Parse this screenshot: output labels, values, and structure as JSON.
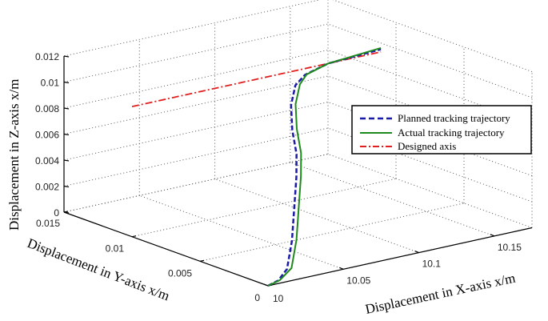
{
  "chart_data": {
    "type": "line3d",
    "title": "",
    "xlabel": "Displacement in X-axis x/m",
    "ylabel": "Displacement in Y-axis x/m",
    "zlabel": "Displacement in Z-axis x/m",
    "xlim": [
      10,
      10.175
    ],
    "ylim": [
      0,
      0.015
    ],
    "zlim": [
      0,
      0.012
    ],
    "xticks": [
      10,
      10.05,
      10.1,
      10.15
    ],
    "xtick_labels": [
      "10",
      "10.05",
      "10.1",
      "10.15"
    ],
    "yticks": [
      0,
      0.005,
      0.01,
      0.015
    ],
    "ytick_labels": [
      "0",
      "0.005",
      "0.01",
      "0.015"
    ],
    "zticks": [
      0,
      0.002,
      0.004,
      0.006,
      0.008,
      0.01,
      0.012
    ],
    "ztick_labels": [
      "0",
      "0.002",
      "0.004",
      "0.006",
      "0.008",
      "0.01",
      "0.012"
    ],
    "grid": true,
    "legend_position": "right",
    "series": [
      {
        "name": "Planned tracking trajectory",
        "color": "#1a1aa8",
        "style": "dashed",
        "points": [
          [
            10,
            0,
            0
          ],
          [
            10.008,
            0.00014,
            0.00014
          ],
          [
            10.018,
            0.0006,
            0.0006
          ],
          [
            10.033,
            0.0019,
            0.0019
          ],
          [
            10.048,
            0.0034,
            0.0034
          ],
          [
            10.063,
            0.0049,
            0.0049
          ],
          [
            10.073,
            0.006,
            0.006
          ],
          [
            10.081,
            0.0072,
            0.0072
          ],
          [
            10.091,
            0.0084,
            0.0084
          ],
          [
            10.102,
            0.0093,
            0.0093
          ],
          [
            10.112,
            0.0097,
            0.0097
          ],
          [
            10.13,
            0.01,
            0.01
          ],
          [
            10.165,
            0.01,
            0.0102
          ]
        ]
      },
      {
        "name": "Actual tracking trajectory",
        "color": "#1e8a1e",
        "style": "solid",
        "points": [
          [
            10,
            0,
            0
          ],
          [
            10.009,
            0.00014,
            0.00014
          ],
          [
            10.021,
            0.0006,
            0.0006
          ],
          [
            10.036,
            0.0019,
            0.0019
          ],
          [
            10.051,
            0.0034,
            0.0034
          ],
          [
            10.066,
            0.0049,
            0.0049
          ],
          [
            10.076,
            0.006,
            0.006
          ],
          [
            10.084,
            0.0072,
            0.0072
          ],
          [
            10.094,
            0.0084,
            0.0084
          ],
          [
            10.105,
            0.0093,
            0.0093
          ],
          [
            10.113,
            0.0097,
            0.0097
          ],
          [
            10.13,
            0.01,
            0.01
          ],
          [
            10.165,
            0.01,
            0.0103
          ]
        ]
      },
      {
        "name": "Designed axis",
        "color": "#e02020",
        "style": "dashdot",
        "points": [
          [
            10,
            0.01,
            0.01
          ],
          [
            10.165,
            0.01,
            0.01
          ]
        ]
      }
    ]
  }
}
